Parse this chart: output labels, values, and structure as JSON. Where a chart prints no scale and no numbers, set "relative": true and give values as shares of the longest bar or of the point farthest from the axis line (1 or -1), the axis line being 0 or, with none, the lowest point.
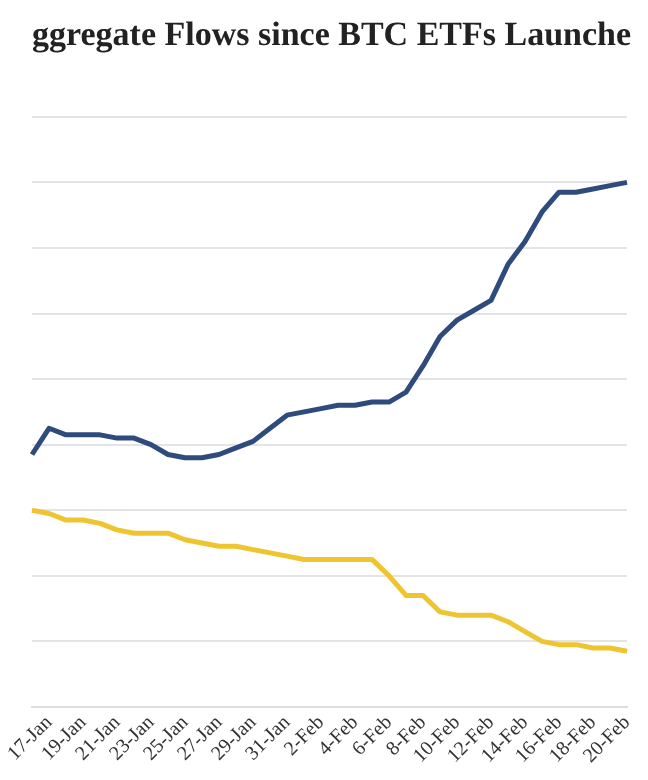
{
  "chart_data": {
    "type": "line",
    "title": "ggregate Flows since BTC ETFs Launche",
    "relative": true,
    "grid": "y",
    "legend": false,
    "marker": "none",
    "line_style": "solid",
    "categories": [
      null,
      "17-Jan",
      null,
      "19-Jan",
      null,
      "21-Jan",
      null,
      "23-Jan",
      null,
      "25-Jan",
      null,
      "27-Jan",
      null,
      "29-Jan",
      null,
      "31-Jan",
      null,
      "2-Feb",
      null,
      "4-Feb",
      null,
      "6-Feb",
      null,
      "8-Feb",
      null,
      "10-Feb",
      null,
      "12-Feb",
      null,
      "14-Feb",
      null,
      "16-Feb",
      null,
      "18-Feb",
      null,
      "20-Feb"
    ],
    "series": [
      {
        "color": "#2f4b7c",
        "values": [
          0.17,
          0.25,
          0.23,
          0.23,
          0.23,
          0.22,
          0.22,
          0.2,
          0.17,
          0.16,
          0.16,
          0.17,
          0.19,
          0.21,
          0.25,
          0.29,
          0.3,
          0.31,
          0.32,
          0.32,
          0.33,
          0.33,
          0.36,
          0.44,
          0.53,
          0.58,
          0.61,
          0.64,
          0.75,
          0.82,
          0.91,
          0.97,
          0.97,
          0.98,
          0.99,
          1
        ]
      },
      {
        "color": "#eec530",
        "values": [
          0,
          -0.01,
          -0.03,
          -0.03,
          -0.04,
          -0.06,
          -0.07,
          -0.07,
          -0.07,
          -0.09,
          -0.1,
          -0.11,
          -0.11,
          -0.12,
          -0.13,
          -0.14,
          -0.15,
          -0.15,
          -0.15,
          -0.15,
          -0.15,
          -0.2,
          -0.26,
          -0.26,
          -0.31,
          -0.32,
          -0.32,
          -0.32,
          -0.34,
          -0.37,
          -0.4,
          -0.41,
          -0.41,
          -0.42,
          -0.42,
          -0.43
        ]
      }
    ]
  }
}
